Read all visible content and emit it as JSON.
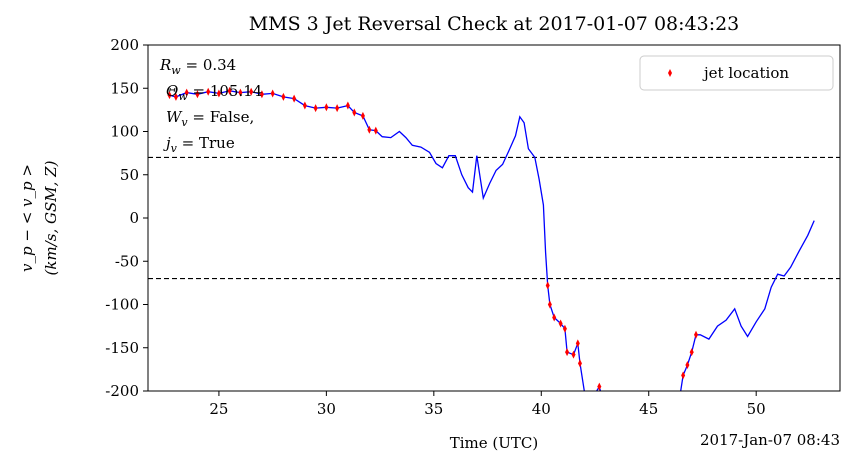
{
  "chart_data": {
    "type": "line",
    "title": "MMS 3 Jet Reversal Check at 2017-01-07 08:43:23",
    "xlabel": "Time (UTC)",
    "x_offset_label": "2017-Jan-07 08:43",
    "ylabel": [
      "v_p − < v_p >",
      "(km/s, GSM, Z)"
    ],
    "annotations": [
      {
        "symbol": "R",
        "sub": "w",
        "text": " = 0.34"
      },
      {
        "symbol": "Θ",
        "sub": "w",
        "text": " = 105.14"
      },
      {
        "symbol": "W",
        "sub": "v",
        "text": " = False,"
      },
      {
        "symbol": "j",
        "sub": "v",
        "text": " = True"
      }
    ],
    "xlim": [
      21.7,
      53.9
    ],
    "xticks": [
      25,
      30,
      35,
      40,
      45,
      50
    ],
    "ylim": [
      -200,
      200
    ],
    "yticks": [
      -200,
      -150,
      -100,
      -50,
      0,
      50,
      100,
      150,
      200
    ],
    "hlines": [
      70,
      -70
    ],
    "legend": "upper right",
    "series": [
      {
        "color": "#0000ff",
        "x": [
          22.7,
          23.0,
          23.5,
          24.0,
          24.5,
          25.0,
          25.5,
          26.0,
          26.5,
          27.0,
          27.5,
          28.0,
          28.5,
          29.0,
          29.5,
          30.0,
          30.5,
          31.0,
          31.3,
          31.7,
          32.0,
          32.3,
          32.6,
          33.0,
          33.4,
          33.7,
          34.0,
          34.4,
          34.8,
          35.1,
          35.4,
          35.7,
          36.0,
          36.3,
          36.6,
          36.8,
          37.0,
          37.3,
          37.6,
          37.9,
          38.2,
          38.5,
          38.8,
          39.0,
          39.2,
          39.4,
          39.7,
          39.9,
          40.1,
          40.2,
          40.3,
          40.4,
          40.6,
          40.9,
          41.1,
          41.2,
          41.5,
          41.7,
          41.8,
          42.0,
          42.2,
          42.7,
          43.2,
          46.3,
          46.6,
          46.8,
          47.0,
          47.2,
          47.4,
          47.8,
          48.2,
          48.6,
          49.0,
          49.3,
          49.6,
          50.0,
          50.4,
          50.7,
          51.0,
          51.3,
          51.6,
          52.0,
          52.4,
          52.7
        ],
        "values": [
          142,
          140,
          145,
          143,
          146,
          144,
          147,
          145,
          146,
          143,
          144,
          140,
          138,
          130,
          127,
          128,
          127,
          130,
          122,
          118,
          102,
          101,
          94,
          93,
          100,
          93,
          84,
          82,
          76,
          63,
          58,
          72,
          72,
          50,
          35,
          30,
          72,
          23,
          40,
          55,
          62,
          78,
          95,
          117,
          110,
          80,
          70,
          45,
          15,
          -40,
          -78,
          -100,
          -115,
          -122,
          -128,
          -155,
          -158,
          -145,
          -168,
          -200,
          -215,
          -195,
          -240,
          -230,
          -182,
          -170,
          -155,
          -135,
          -135,
          -140,
          -125,
          -118,
          -105,
          -125,
          -137,
          -120,
          -105,
          -80,
          -65,
          -67,
          -57,
          -38,
          -20,
          -3
        ]
      },
      {
        "name": "jet location",
        "color": "#ff0000",
        "marker": "diamond",
        "x": [
          22.7,
          23.0,
          23.5,
          24.0,
          24.5,
          25.0,
          25.5,
          26.0,
          26.5,
          27.0,
          27.5,
          28.0,
          28.5,
          29.0,
          29.5,
          30.0,
          30.5,
          31.0,
          31.3,
          31.7,
          32.0,
          32.3,
          40.3,
          40.4,
          40.6,
          40.9,
          41.1,
          41.2,
          41.5,
          41.7,
          41.8,
          42.7,
          46.6,
          46.8,
          47.0,
          47.2
        ],
        "values": [
          142,
          140,
          145,
          143,
          146,
          144,
          147,
          145,
          146,
          143,
          144,
          140,
          138,
          130,
          127,
          128,
          127,
          130,
          122,
          118,
          102,
          101,
          -78,
          -100,
          -115,
          -122,
          -128,
          -155,
          -158,
          -145,
          -168,
          -195,
          -182,
          -170,
          -155,
          -135
        ]
      }
    ]
  }
}
